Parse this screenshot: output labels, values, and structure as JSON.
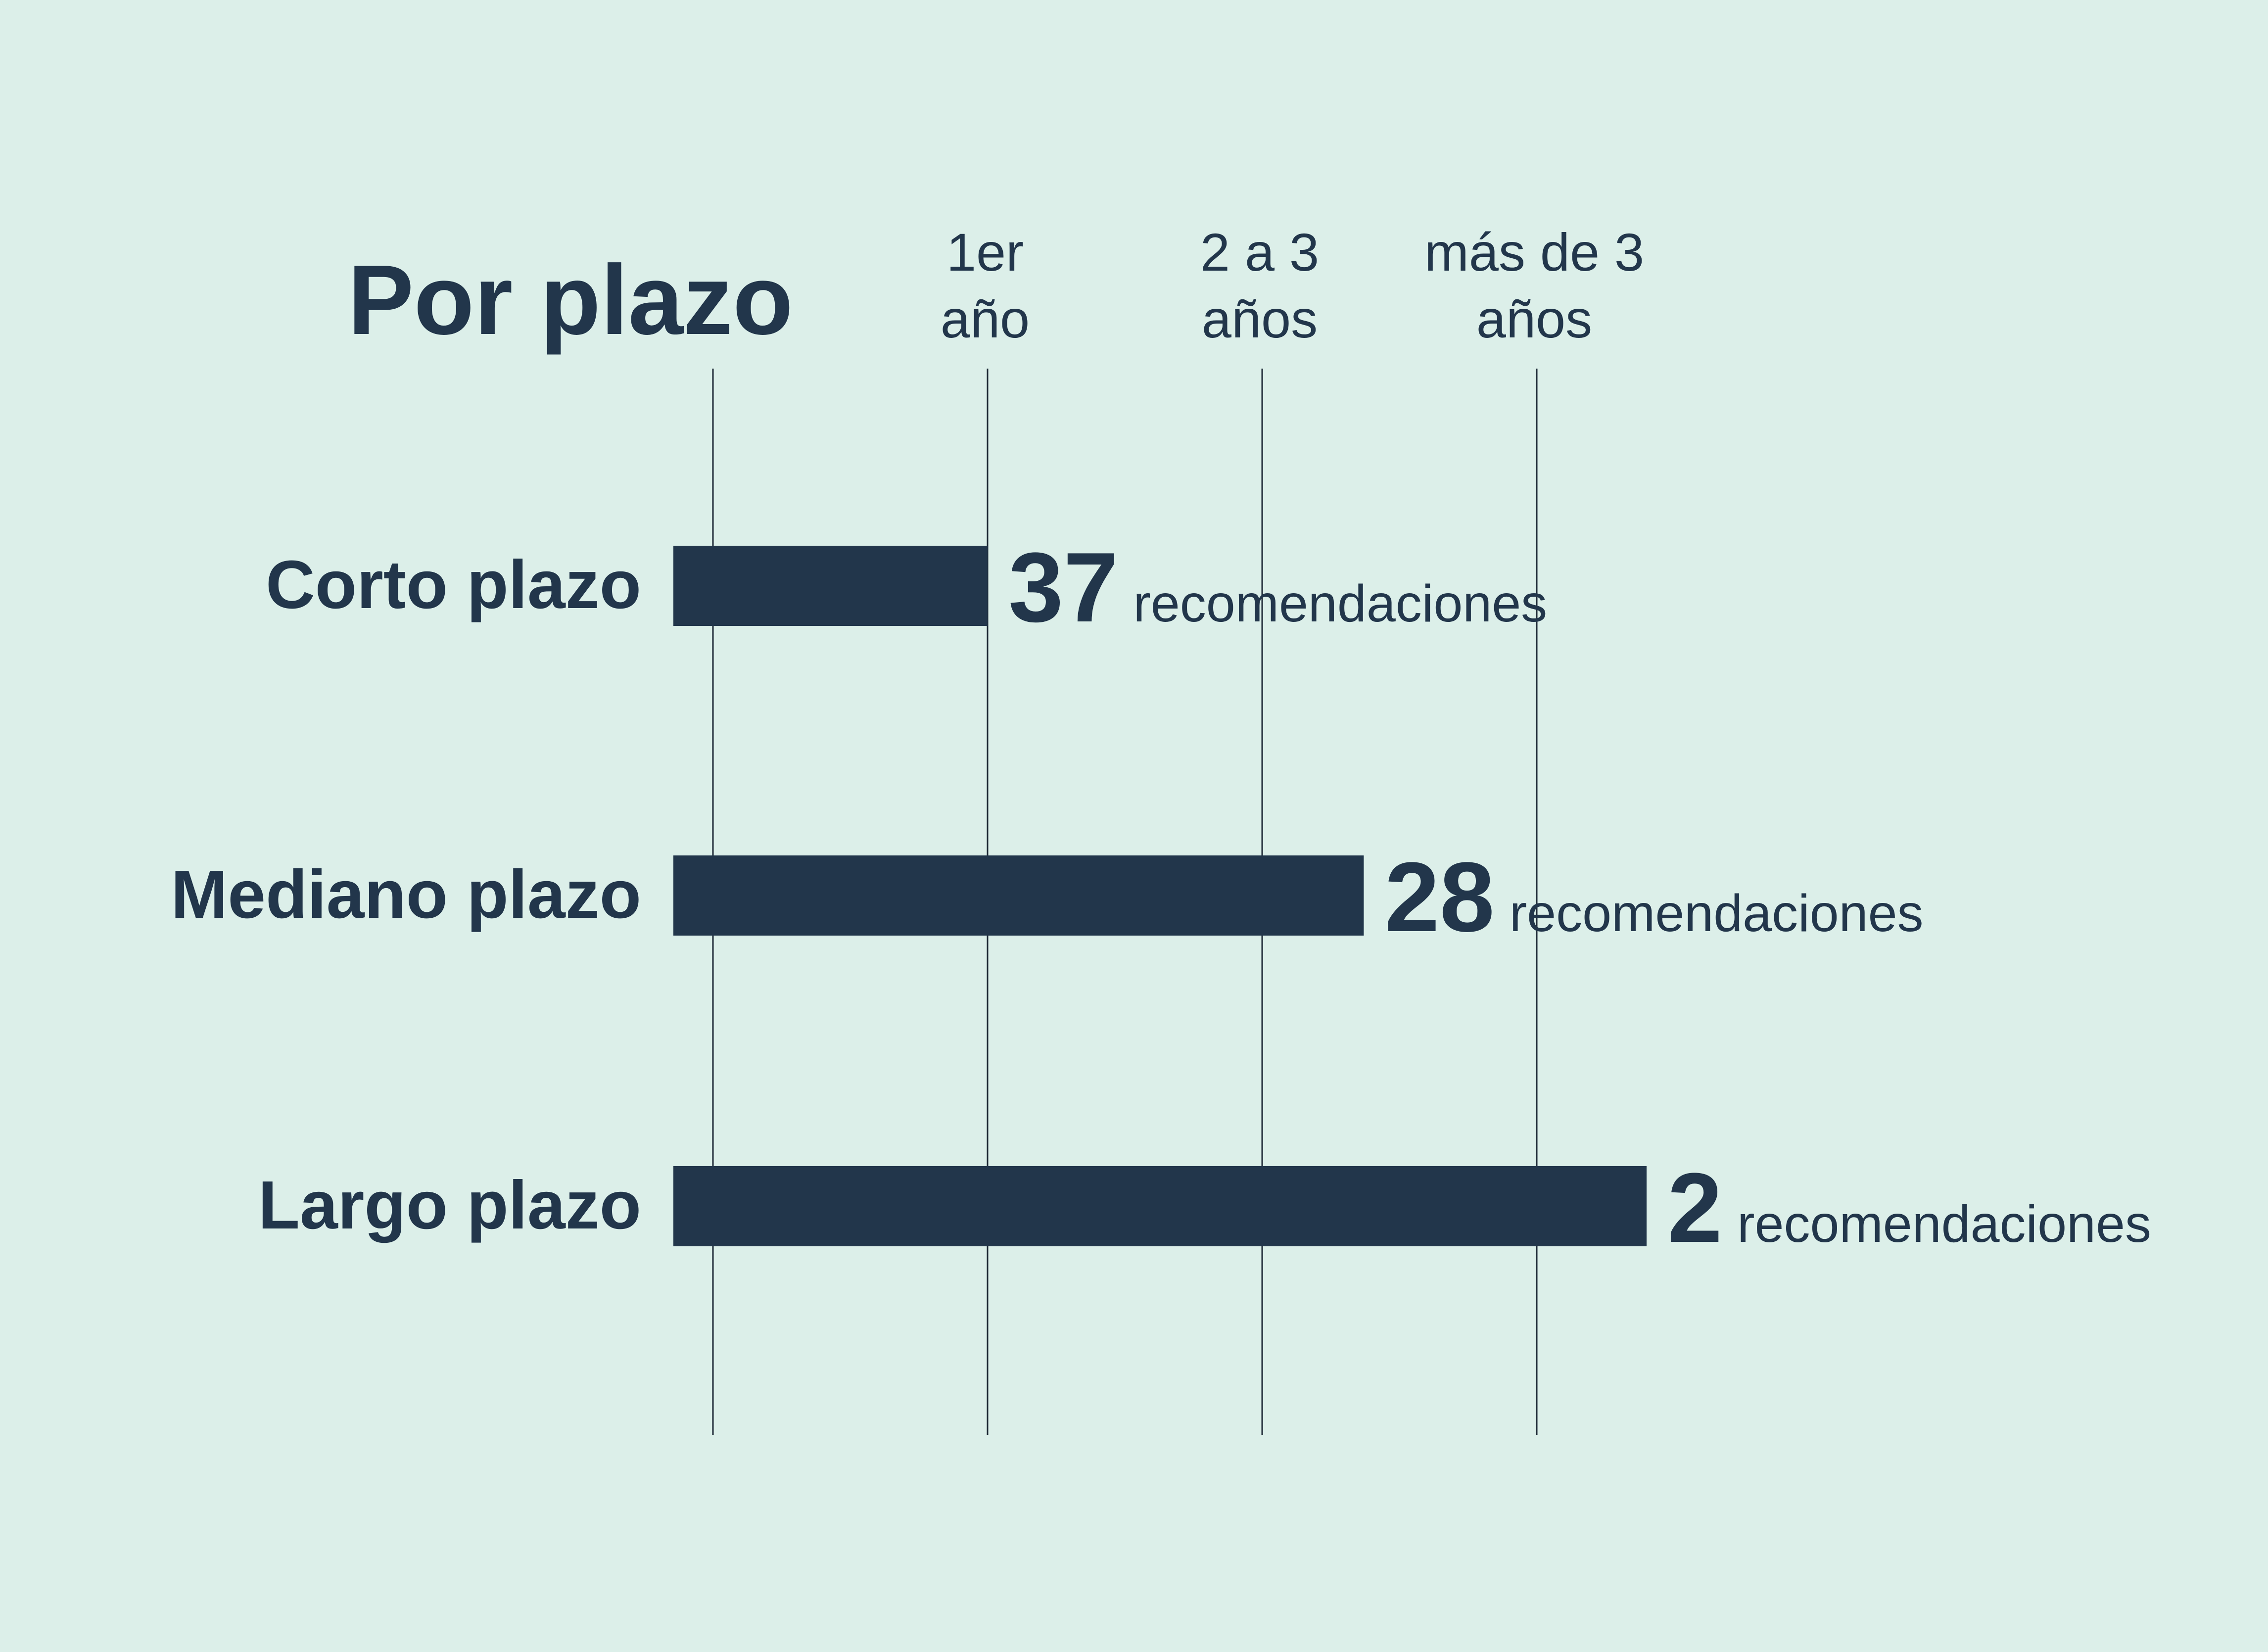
{
  "chart_data": {
    "type": "bar",
    "orientation": "horizontal",
    "title": "Por plazo",
    "columns": [
      {
        "lines": [
          "1er",
          "año"
        ]
      },
      {
        "lines": [
          "2 a 3",
          "años"
        ]
      },
      {
        "lines": [
          "más de 3",
          "años"
        ]
      }
    ],
    "categories": [
      "Corto plazo",
      "Mediano plazo",
      "Largo plazo"
    ],
    "bar_extent": [
      1,
      2.37,
      3.4
    ],
    "value_labels": [
      "37",
      "28",
      "2"
    ],
    "unit_label": "recomendaciones",
    "grid": true,
    "colors": {
      "background": "#dcefe9",
      "bar": "#22364b",
      "text": "#22364b",
      "gridline": "#1e2a36"
    }
  }
}
